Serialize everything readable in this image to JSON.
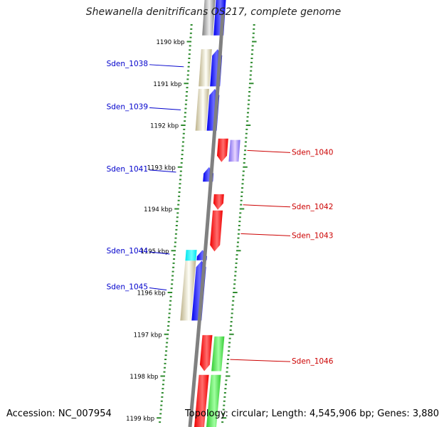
{
  "title": "Shewanella denitrificans OS217, complete genome",
  "footer": {
    "accession": "Accession: NC_007954",
    "summary": "Topology: circular; Length: 4,545,906 bp; Genes: 3,880"
  },
  "colors": {
    "backbone": "#808080",
    "tick": "#2e8b2e",
    "forward_label": "#0000cc",
    "reverse_label": "#cc0000",
    "blue": "#0000ee",
    "red": "#ee0000",
    "green": "#33cc33",
    "tan": "#bdb28a",
    "cyan": "#00e5ee",
    "purple": "#7b68ee",
    "gray": "#808080"
  },
  "scale_labels": [
    {
      "kbp": 1190,
      "text": "1190 kbp"
    },
    {
      "kbp": 1191,
      "text": "1191 kbp"
    },
    {
      "kbp": 1192,
      "text": "1192 kbp"
    },
    {
      "kbp": 1193,
      "text": "1193 kbp"
    },
    {
      "kbp": 1194,
      "text": "1194 kbp"
    },
    {
      "kbp": 1195,
      "text": "1195 kbp"
    },
    {
      "kbp": 1196,
      "text": "1196 kbp"
    },
    {
      "kbp": 1197,
      "text": "1197 kbp"
    },
    {
      "kbp": 1198,
      "text": "1198 kbp"
    },
    {
      "kbp": 1199,
      "text": "1199 kbp"
    }
  ],
  "features": [
    {
      "ring": "out1",
      "start": 1189.0,
      "end": 1189.85,
      "color": "gray",
      "dir": 0
    },
    {
      "ring": "fwd",
      "start": 1189.0,
      "end": 1189.85,
      "color": "blue",
      "dir": 0
    },
    {
      "ring": "out1",
      "start": 1190.18,
      "end": 1191.07,
      "color": "tan",
      "dir": 0
    },
    {
      "ring": "fwd",
      "start": 1190.18,
      "end": 1191.07,
      "color": "blue",
      "dir": 1
    },
    {
      "ring": "out1",
      "start": 1191.13,
      "end": 1192.13,
      "color": "tan",
      "dir": 0
    },
    {
      "ring": "fwd",
      "start": 1191.13,
      "end": 1192.13,
      "color": "blue",
      "dir": 1
    },
    {
      "ring": "rev",
      "start": 1192.32,
      "end": 1192.88,
      "color": "red",
      "dir": -1
    },
    {
      "ring": "out2",
      "start": 1192.35,
      "end": 1192.87,
      "color": "purple",
      "dir": 0
    },
    {
      "ring": "fwd",
      "start": 1193.0,
      "end": 1193.35,
      "color": "blue",
      "dir": 1
    },
    {
      "ring": "rev",
      "start": 1193.65,
      "end": 1194.02,
      "color": "red",
      "dir": -1
    },
    {
      "ring": "rev",
      "start": 1194.04,
      "end": 1195.02,
      "color": "red",
      "dir": -1
    },
    {
      "ring": "out1",
      "start": 1194.98,
      "end": 1195.24,
      "color": "cyan",
      "dir": 0
    },
    {
      "ring": "fwd",
      "start": 1194.98,
      "end": 1195.23,
      "color": "blue",
      "dir": 1
    },
    {
      "ring": "out1",
      "start": 1195.24,
      "end": 1196.67,
      "color": "tan",
      "dir": 0
    },
    {
      "ring": "fwd",
      "start": 1195.24,
      "end": 1196.67,
      "color": "blue",
      "dir": 1
    },
    {
      "ring": "rev",
      "start": 1197.02,
      "end": 1197.88,
      "color": "red",
      "dir": -1
    },
    {
      "ring": "out2",
      "start": 1197.05,
      "end": 1197.88,
      "color": "green",
      "dir": 0
    },
    {
      "ring": "rev",
      "start": 1197.97,
      "end": 1199.4,
      "color": "red",
      "dir": 0
    },
    {
      "ring": "out2",
      "start": 1197.97,
      "end": 1199.4,
      "color": "green",
      "dir": 0
    }
  ],
  "gene_labels": [
    {
      "name": "Sden_1038",
      "side": "left",
      "kbp": 1190.55
    },
    {
      "name": "Sden_1039",
      "side": "left",
      "kbp": 1191.58
    },
    {
      "name": "Sden_1040",
      "side": "right",
      "kbp": 1192.62
    },
    {
      "name": "Sden_1041",
      "side": "left",
      "kbp": 1193.07
    },
    {
      "name": "Sden_1042",
      "side": "right",
      "kbp": 1193.92
    },
    {
      "name": "Sden_1043",
      "side": "right",
      "kbp": 1194.61
    },
    {
      "name": "Sden_1044",
      "side": "left",
      "kbp": 1195.03
    },
    {
      "name": "Sden_1045",
      "side": "left",
      "kbp": 1195.89
    },
    {
      "name": "Sden_1046",
      "side": "right",
      "kbp": 1197.62
    }
  ]
}
